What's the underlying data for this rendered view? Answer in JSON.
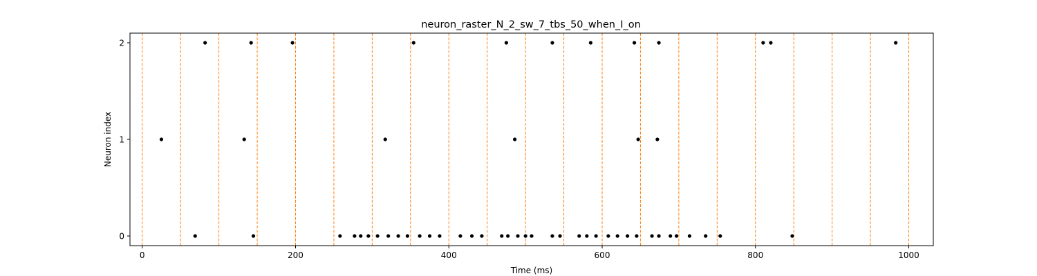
{
  "chart_data": {
    "type": "scatter",
    "title": "neuron_raster_N_2_sw_7_tbs_50_when_I_on",
    "xlabel": "Time (ms)",
    "ylabel": "Neuron index",
    "xlim": [
      -16,
      1032
    ],
    "ylim": [
      -0.1,
      2.1
    ],
    "xticks": [
      0,
      200,
      400,
      600,
      800,
      1000
    ],
    "xtick_labels": [
      "0",
      "200",
      "400",
      "600",
      "800",
      "1000"
    ],
    "yticks": [
      0,
      1,
      2
    ],
    "ytick_labels": [
      "0",
      "1",
      "2"
    ],
    "grid": false,
    "legend": "none",
    "marker_color": "#000000",
    "vline_color": "#ff7f0e",
    "vlines": [
      0,
      50,
      100,
      150,
      200,
      250,
      300,
      350,
      400,
      450,
      500,
      550,
      600,
      650,
      700,
      750,
      800,
      850,
      900,
      950,
      1000
    ],
    "series": [
      {
        "neuron": 0,
        "x": [
          69,
          145,
          258,
          277,
          285,
          295,
          307,
          321,
          334,
          346,
          362,
          375,
          388,
          415,
          430,
          443,
          469,
          477,
          490,
          500,
          508,
          535,
          545,
          570,
          580,
          592,
          608,
          620,
          633,
          645,
          665,
          674,
          689,
          697,
          714,
          735,
          754,
          848
        ]
      },
      {
        "neuron": 1,
        "x": [
          25,
          133,
          317,
          486,
          647,
          672
        ]
      },
      {
        "neuron": 2,
        "x": [
          82,
          142,
          196,
          354,
          475,
          535,
          585,
          642,
          674,
          810,
          820,
          983
        ]
      }
    ]
  }
}
